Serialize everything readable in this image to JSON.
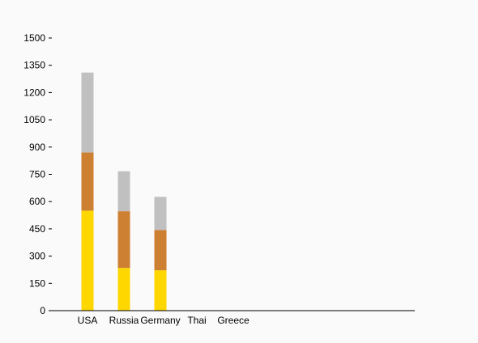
{
  "chart_data": {
    "type": "bar",
    "stacked": true,
    "categories": [
      "USA",
      "Russia",
      "Germany",
      "Thai",
      "Greece"
    ],
    "series": [
      {
        "values": [
          550,
          235,
          222,
          0,
          0
        ],
        "color": "#ffd700"
      },
      {
        "values": [
          320,
          312,
          222,
          0,
          0
        ],
        "color": "#cd7f32"
      },
      {
        "values": [
          440,
          220,
          182,
          0,
          0
        ],
        "color": "#c0c0c0"
      }
    ],
    "yticks": [
      0,
      150,
      300,
      450,
      600,
      750,
      900,
      1050,
      1200,
      1350,
      1500
    ],
    "ylim": [
      0,
      1500
    ],
    "grid": false,
    "legend": "none",
    "title": "",
    "xlabel": "",
    "ylabel": ""
  }
}
